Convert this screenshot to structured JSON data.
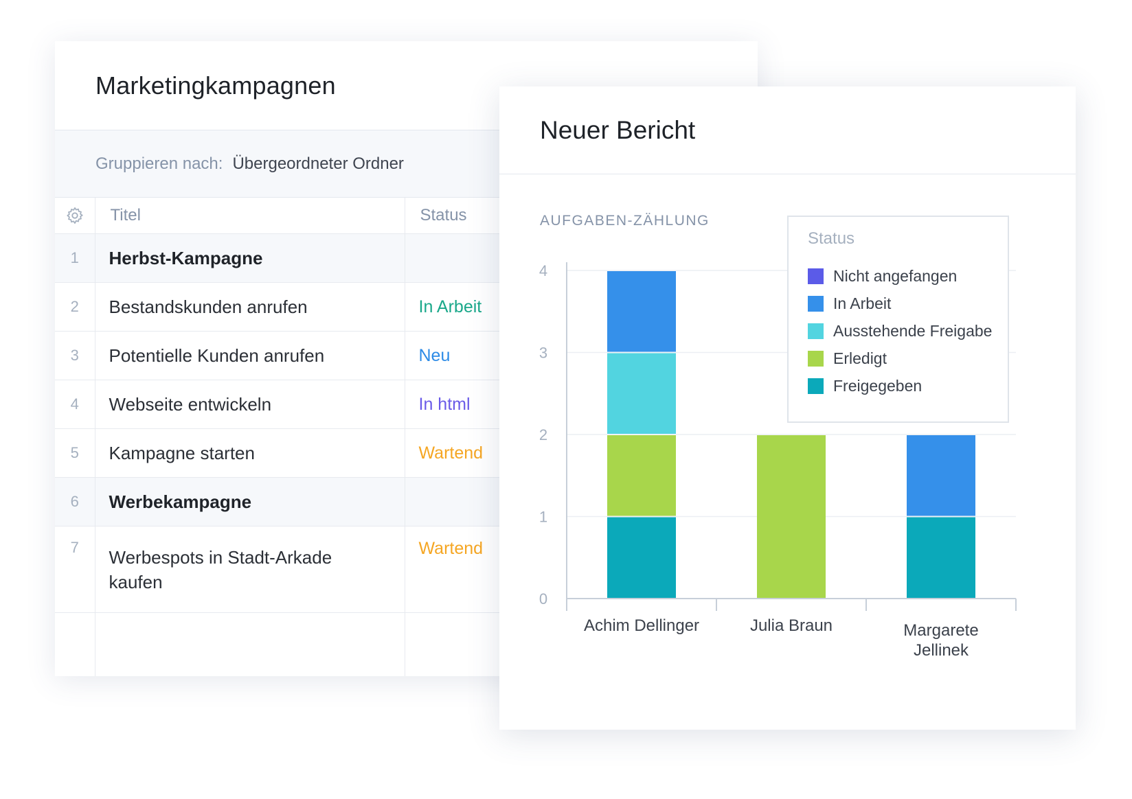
{
  "table_card": {
    "title": "Marketingkampagnen",
    "group_by_label": "Gruppieren nach:",
    "group_by_value": "Übergeordneter Ordner",
    "columns": {
      "settings_icon": "gear-icon",
      "title": "Titel",
      "status": "Status"
    },
    "rows": [
      {
        "num": "1",
        "title": "Herbst-Kampagne",
        "status": "",
        "type": "group"
      },
      {
        "num": "2",
        "title": "Bestandskunden anrufen",
        "status": "In Arbeit",
        "status_color": "#1aa88a",
        "type": "task"
      },
      {
        "num": "3",
        "title": "Potentielle Kunden anrufen",
        "status": "Neu",
        "status_color": "#2d8be6",
        "type": "task"
      },
      {
        "num": "4",
        "title": "Webseite entwickeln",
        "status": "In html",
        "status_color": "#6a5be8",
        "type": "task"
      },
      {
        "num": "5",
        "title": "Kampagne starten",
        "status": "Wartend",
        "status_color": "#f5a623",
        "type": "task"
      },
      {
        "num": "6",
        "title": "Werbekampagne",
        "status": "",
        "type": "group"
      },
      {
        "num": "7",
        "title": "Werbespots in Stadt-Arkade kaufen",
        "status": "Wartend",
        "status_color": "#f5a623",
        "type": "task"
      }
    ]
  },
  "report_card": {
    "title": "Neuer Bericht",
    "chart_label": "AUFGABEN-ZÄHLUNG"
  },
  "chart_data": {
    "type": "bar",
    "stacked": true,
    "title": "",
    "xlabel": "",
    "ylabel": "AUFGABEN-ZÄHLUNG",
    "ylim": [
      0,
      4
    ],
    "yticks": [
      0,
      1,
      2,
      3,
      4
    ],
    "grid": true,
    "legend_position": "top-right",
    "legend_title": "Status",
    "categories": [
      "Achim Dellinger",
      "Julia Braun",
      "Margarete Jellinek"
    ],
    "series": [
      {
        "name": "Nicht angefangen",
        "color": "#5b5be8",
        "values": [
          0,
          0,
          0
        ]
      },
      {
        "name": "In Arbeit",
        "color": "#3590ea",
        "values": [
          1,
          0,
          1
        ]
      },
      {
        "name": "Ausstehende Freigabe",
        "color": "#52d4e0",
        "values": [
          1,
          0,
          0
        ]
      },
      {
        "name": "Erledigt",
        "color": "#a8d64b",
        "values": [
          1,
          2,
          0
        ]
      },
      {
        "name": "Freigegeben",
        "color": "#0ba9ba",
        "values": [
          1,
          0,
          1
        ]
      }
    ],
    "stack_order_bottom_up": [
      "Freigegeben",
      "Erledigt",
      "Ausstehende Freigabe",
      "In Arbeit",
      "Nicht angefangen"
    ]
  }
}
